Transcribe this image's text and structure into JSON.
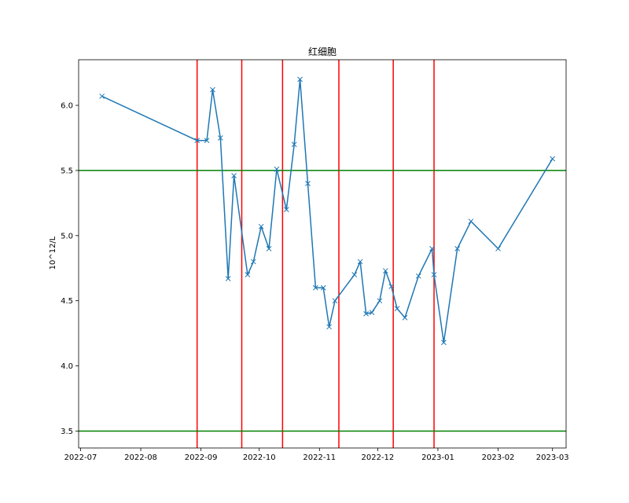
{
  "chart_data": {
    "type": "line",
    "title": "红细胞",
    "xlabel": "",
    "ylabel": "10^12/L",
    "x_type": "date",
    "xlim": [
      "2022-06-30",
      "2023-03-08"
    ],
    "ylim": [
      3.37,
      6.35
    ],
    "x_ticks": [
      {
        "date": "2022-07-01",
        "label": "2022-07"
      },
      {
        "date": "2022-08-01",
        "label": "2022-08"
      },
      {
        "date": "2022-09-01",
        "label": "2022-09"
      },
      {
        "date": "2022-10-01",
        "label": "2022-10"
      },
      {
        "date": "2022-11-01",
        "label": "2022-11"
      },
      {
        "date": "2022-12-01",
        "label": "2022-12"
      },
      {
        "date": "2023-01-01",
        "label": "2023-01"
      },
      {
        "date": "2023-02-01",
        "label": "2023-02"
      },
      {
        "date": "2023-03-01",
        "label": "2023-03"
      }
    ],
    "y_ticks": [
      {
        "value": 3.5,
        "label": "3.5"
      },
      {
        "value": 4.0,
        "label": "4.0"
      },
      {
        "value": 4.5,
        "label": "4.5"
      },
      {
        "value": 5.0,
        "label": "5.0"
      },
      {
        "value": 5.5,
        "label": "5.5"
      },
      {
        "value": 6.0,
        "label": "6.0"
      }
    ],
    "grid": false,
    "legend": "none",
    "series": [
      {
        "color": "#1f77b4",
        "marker": "x",
        "x": [
          "2022-07-12",
          "2022-08-30",
          "2022-09-04",
          "2022-09-07",
          "2022-09-11",
          "2022-09-15",
          "2022-09-18",
          "2022-09-25",
          "2022-09-28",
          "2022-10-02",
          "2022-10-06",
          "2022-10-10",
          "2022-10-15",
          "2022-10-19",
          "2022-10-22",
          "2022-10-26",
          "2022-10-30",
          "2022-11-03",
          "2022-11-06",
          "2022-11-09",
          "2022-11-19",
          "2022-11-22",
          "2022-11-25",
          "2022-11-28",
          "2022-12-02",
          "2022-12-05",
          "2022-12-08",
          "2022-12-11",
          "2022-12-15",
          "2022-12-22",
          "2022-12-29",
          "2022-12-30",
          "2023-01-04",
          "2023-01-11",
          "2023-01-18",
          "2023-02-01",
          "2023-03-01"
        ],
        "y": [
          6.07,
          5.73,
          5.73,
          6.12,
          5.75,
          4.67,
          5.46,
          4.7,
          4.8,
          5.07,
          4.9,
          5.51,
          5.2,
          5.7,
          6.2,
          5.4,
          4.6,
          4.6,
          4.3,
          4.5,
          4.7,
          4.8,
          4.4,
          4.41,
          4.5,
          4.73,
          4.61,
          4.44,
          4.37,
          4.69,
          4.9,
          4.7,
          4.18,
          4.9,
          5.11,
          4.9,
          5.59
        ]
      }
    ],
    "hlines": [
      {
        "y": 5.5,
        "color": "#008000"
      },
      {
        "y": 3.5,
        "color": "#008000"
      }
    ],
    "vlines": [
      {
        "x": "2022-08-30",
        "color": "#ff0000"
      },
      {
        "x": "2022-09-22",
        "color": "#ff0000"
      },
      {
        "x": "2022-10-13",
        "color": "#ff0000"
      },
      {
        "x": "2022-11-11",
        "color": "#ff0000"
      },
      {
        "x": "2022-12-09",
        "color": "#ff0000"
      },
      {
        "x": "2022-12-30",
        "color": "#ff0000"
      }
    ]
  }
}
